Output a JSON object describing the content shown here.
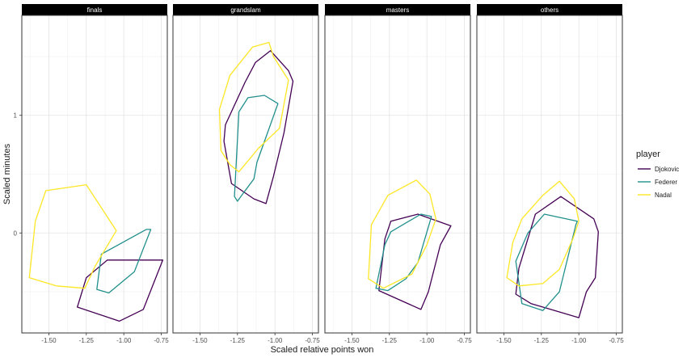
{
  "chart_data": {
    "type": "polygon-hull-facets",
    "xlabel": "Scaled relative points won",
    "ylabel": "Scaled minutes",
    "xlim": [
      -1.68,
      -0.71
    ],
    "ylim": [
      -0.85,
      1.85
    ],
    "x_ticks": [
      -1.5,
      -1.25,
      -1.0,
      -0.75
    ],
    "x_tick_labels": [
      "-1.50",
      "-1.25",
      "-1.00",
      "-0.75"
    ],
    "y_ticks": [
      0,
      1
    ],
    "y_tick_labels": [
      "0",
      "1"
    ],
    "grid": true,
    "legend": {
      "title": "player",
      "position": "right",
      "entries": [
        "Djokovic",
        "Federer",
        "Nadal"
      ]
    },
    "series_colors": {
      "Djokovic": "#440154",
      "Federer": "#21908C",
      "Nadal": "#FDE725"
    },
    "panels": [
      {
        "label": "finals",
        "series": [
          {
            "name": "Djokovic",
            "points": [
              [
                -1.31,
                -0.63
              ],
              [
                -1.03,
                -0.75
              ],
              [
                -0.87,
                -0.65
              ],
              [
                -0.74,
                -0.23
              ],
              [
                -1.11,
                -0.23
              ],
              [
                -1.25,
                -0.38
              ]
            ]
          },
          {
            "name": "Federer",
            "points": [
              [
                -1.18,
                -0.48
              ],
              [
                -1.1,
                -0.51
              ],
              [
                -0.93,
                -0.33
              ],
              [
                -0.82,
                0.03
              ],
              [
                -0.85,
                0.03
              ],
              [
                -1.15,
                -0.18
              ]
            ]
          },
          {
            "name": "Nadal",
            "points": [
              [
                -1.63,
                -0.38
              ],
              [
                -1.45,
                -0.45
              ],
              [
                -1.26,
                -0.47
              ],
              [
                -1.19,
                -0.28
              ],
              [
                -1.05,
                0.02
              ],
              [
                -1.25,
                0.41
              ],
              [
                -1.52,
                0.36
              ],
              [
                -1.59,
                0.1
              ]
            ]
          }
        ]
      },
      {
        "label": "grandslam",
        "series": [
          {
            "name": "Djokovic",
            "points": [
              [
                -1.34,
                0.78
              ],
              [
                -1.29,
                0.42
              ],
              [
                -1.14,
                0.29
              ],
              [
                -1.06,
                0.25
              ],
              [
                -1.01,
                0.48
              ],
              [
                -0.94,
                0.85
              ],
              [
                -0.88,
                1.29
              ],
              [
                -0.91,
                1.38
              ],
              [
                -1.03,
                1.55
              ],
              [
                -1.13,
                1.45
              ],
              [
                -1.2,
                1.28
              ],
              [
                -1.33,
                0.92
              ]
            ]
          },
          {
            "name": "Federer",
            "points": [
              [
                -1.27,
                0.31
              ],
              [
                -1.25,
                0.27
              ],
              [
                -1.21,
                0.34
              ],
              [
                -1.14,
                0.46
              ],
              [
                -1.12,
                0.6
              ],
              [
                -1.05,
                0.85
              ],
              [
                -0.98,
                1.1
              ],
              [
                -1.07,
                1.17
              ],
              [
                -1.18,
                1.15
              ],
              [
                -1.24,
                1.03
              ]
            ]
          },
          {
            "name": "Nadal",
            "points": [
              [
                -1.36,
                0.7
              ],
              [
                -1.3,
                0.58
              ],
              [
                -1.24,
                0.52
              ],
              [
                -1.11,
                0.72
              ],
              [
                -0.97,
                0.89
              ],
              [
                -0.91,
                1.3
              ],
              [
                -1.01,
                1.5
              ],
              [
                -1.04,
                1.62
              ],
              [
                -1.15,
                1.58
              ],
              [
                -1.3,
                1.34
              ],
              [
                -1.37,
                1.05
              ]
            ]
          }
        ]
      },
      {
        "label": "masters",
        "series": [
          {
            "name": "Djokovic",
            "points": [
              [
                -1.32,
                -0.49
              ],
              [
                -1.04,
                -0.65
              ],
              [
                -0.99,
                -0.5
              ],
              [
                -0.91,
                -0.1
              ],
              [
                -0.84,
                0.06
              ],
              [
                -1.06,
                0.16
              ],
              [
                -1.24,
                0.1
              ],
              [
                -1.28,
                -0.05
              ]
            ]
          },
          {
            "name": "Federer",
            "points": [
              [
                -1.34,
                -0.47
              ],
              [
                -1.26,
                -0.49
              ],
              [
                -1.14,
                -0.39
              ],
              [
                -1.06,
                -0.25
              ],
              [
                -0.97,
                0.14
              ],
              [
                -1.04,
                0.16
              ],
              [
                -1.24,
                0.01
              ],
              [
                -1.28,
                -0.1
              ]
            ]
          },
          {
            "name": "Nadal",
            "points": [
              [
                -1.39,
                -0.39
              ],
              [
                -1.29,
                -0.47
              ],
              [
                -1.1,
                -0.35
              ],
              [
                -1.0,
                -0.1
              ],
              [
                -0.94,
                0.12
              ],
              [
                -0.98,
                0.33
              ],
              [
                -1.07,
                0.45
              ],
              [
                -1.26,
                0.32
              ],
              [
                -1.37,
                0.07
              ]
            ]
          }
        ]
      },
      {
        "label": "others",
        "series": [
          {
            "name": "Djokovic",
            "points": [
              [
                -1.42,
                -0.52
              ],
              [
                -1.32,
                -0.6
              ],
              [
                -1.0,
                -0.72
              ],
              [
                -0.95,
                -0.5
              ],
              [
                -0.89,
                -0.38
              ],
              [
                -0.87,
                0.01
              ],
              [
                -0.9,
                0.12
              ],
              [
                -1.12,
                0.31
              ],
              [
                -1.29,
                0.16
              ],
              [
                -1.4,
                -0.3
              ]
            ]
          },
          {
            "name": "Federer",
            "points": [
              [
                -1.42,
                -0.24
              ],
              [
                -1.38,
                -0.6
              ],
              [
                -1.24,
                -0.66
              ],
              [
                -1.13,
                -0.5
              ],
              [
                -1.02,
                0.07
              ],
              [
                -1.01,
                0.1
              ],
              [
                -1.23,
                0.16
              ],
              [
                -1.34,
                0.0
              ]
            ]
          },
          {
            "name": "Nadal",
            "points": [
              [
                -1.48,
                -0.38
              ],
              [
                -1.4,
                -0.45
              ],
              [
                -1.24,
                -0.43
              ],
              [
                -1.13,
                -0.31
              ],
              [
                -1.04,
                -0.05
              ],
              [
                -1.0,
                0.1
              ],
              [
                -1.03,
                0.29
              ],
              [
                -1.13,
                0.44
              ],
              [
                -1.24,
                0.32
              ],
              [
                -1.38,
                0.12
              ],
              [
                -1.44,
                -0.08
              ]
            ]
          }
        ]
      }
    ]
  }
}
